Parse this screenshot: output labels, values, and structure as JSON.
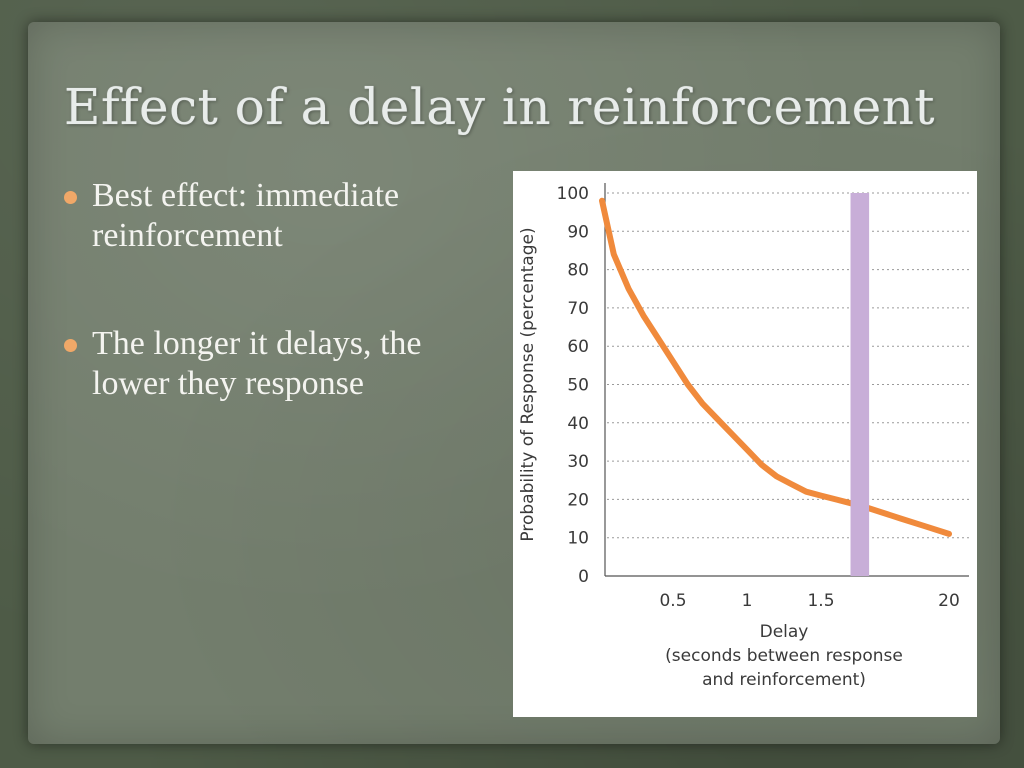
{
  "slide": {
    "title": "Effect of a delay in reinforcement",
    "bullets": [
      "Best effect: immediate reinforcement",
      "The longer it delays, the lower they response"
    ]
  },
  "colors": {
    "curve": "#f08a3c",
    "bar": "#c8aed8",
    "bullet": "#f0a868",
    "grid": "#9a9a9a"
  },
  "chart_data": {
    "type": "line",
    "ylabel": "Probability of Response (percentage)",
    "xlabel_lines": [
      "Delay",
      "(seconds between response",
      "and reinforcement)"
    ],
    "ylim": [
      0,
      100
    ],
    "yticks": [
      0,
      10,
      20,
      30,
      40,
      50,
      60,
      70,
      80,
      90,
      100
    ],
    "xtick_labels": [
      "0.5",
      "1",
      "1.5",
      "20"
    ],
    "x_axis_note": "axis broken between 1.5 and 20",
    "grid": "horizontal dotted",
    "series": [
      {
        "x": [
          0.02,
          0.1,
          0.2,
          0.3,
          0.4,
          0.5,
          0.6,
          0.7,
          0.8,
          0.9,
          1.0,
          1.1,
          1.2,
          1.3,
          1.4,
          1.5,
          1.6,
          1.7,
          1.8,
          5,
          10,
          20
        ],
        "y": [
          98,
          84,
          75,
          68,
          62,
          56,
          50,
          45,
          41,
          37,
          33,
          29,
          26,
          24,
          22,
          21,
          20,
          19,
          18,
          15,
          13,
          11
        ]
      }
    ],
    "highlight_bar": {
      "x_start": 1.7,
      "x_end": 2.0,
      "value": 100
    }
  }
}
